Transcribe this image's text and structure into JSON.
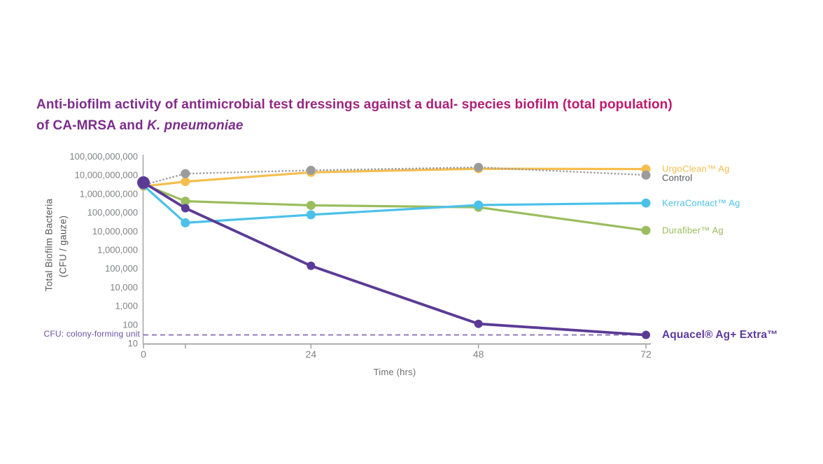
{
  "colors": {
    "title_gradient_start": "#7B2D8B",
    "title_gradient_end": "#C2186B",
    "title_line2": "#7B2D8B",
    "axis": "#A7A9AC",
    "tick_text": "#808285",
    "axis_title_text": "#6D6E71",
    "cfu_note_text": "#6C51A4"
  },
  "chart_data": {
    "type": "line",
    "title_line1": "Anti-biofilm activity of antimicrobial test dressings against a dual- species biofilm (total population)",
    "title_line2_prefix": "of CA-MRSA and ",
    "title_line2_italic": "K. pneumoniae",
    "xlabel": "Time (hrs)",
    "ylabel_line1": "Total Biofilm Bacteria",
    "ylabel_line2": "(CFU / gauze)",
    "y_scale": "log",
    "ylim": [
      10,
      100000000000
    ],
    "xlim": [
      0,
      72
    ],
    "grid": false,
    "legend_position": "right-of-last-point",
    "x": [
      0,
      6,
      24,
      48,
      72
    ],
    "x_ticks": [
      {
        "t": 0,
        "label": "0"
      },
      {
        "t": 6,
        "label": ""
      },
      {
        "t": 24,
        "label": "24"
      },
      {
        "t": 48,
        "label": "48"
      },
      {
        "t": 72,
        "label": "72"
      }
    ],
    "y_ticks": [
      {
        "value": 100000000000,
        "label": "100,000,000,000"
      },
      {
        "value": 10000000000,
        "label": "10,000,000,000"
      },
      {
        "value": 1000000000,
        "label": "1,000,000,000"
      },
      {
        "value": 100000000,
        "label": "100,000,000"
      },
      {
        "value": 10000000,
        "label": "10,000,000"
      },
      {
        "value": 1000000,
        "label": "1,000,000"
      },
      {
        "value": 100000,
        "label": "100,000"
      },
      {
        "value": 10000,
        "label": "10,000"
      },
      {
        "value": 1000,
        "label": "1,000"
      },
      {
        "value": 100,
        "label": "100"
      },
      {
        "value": 10,
        "label": "10"
      }
    ],
    "series": [
      {
        "label": "UrgoClean™ Ag",
        "color": "#F5BE4E",
        "label_color": "#F5BE4E",
        "style": "solid",
        "width": 3.2,
        "marker": 6.5,
        "label_dy": -1,
        "values": [
          2500000000.0,
          4500000000.0,
          14000000000.0,
          22000000000.0,
          21000000000.0
        ]
      },
      {
        "label": "Durafiber™ Ag",
        "color": "#9ABD5D",
        "label_color": "#9ABD5D",
        "style": "solid",
        "width": 3.2,
        "marker": 6.5,
        "label_dy": 0,
        "values": [
          3200000000.0,
          400000000.0,
          240000000.0,
          190000000.0,
          11000000.0
        ]
      },
      {
        "label": "KerraContact™ Ag",
        "color": "#4BC1E9",
        "label_color": "#4BC1E9",
        "style": "solid",
        "width": 3.2,
        "marker": 6.5,
        "label_dy": 0,
        "values": [
          2800000000.0,
          28000000.0,
          75000000.0,
          250000000.0,
          320000000.0
        ]
      },
      {
        "label": "Control",
        "color": "#9B9B9C",
        "label_color": "#54565A",
        "style": "dotted",
        "width": 2.6,
        "marker": 6.5,
        "label_dy": 4,
        "values": [
          3000000000.0,
          12000000000.0,
          18000000000.0,
          26000000000.0,
          10000000000.0
        ]
      },
      {
        "label": "Aquacel® Ag+ Extra™",
        "color": "#5B3A96",
        "label_color": "#5F3C9B",
        "style": "solid",
        "width": 3.8,
        "marker": 6,
        "first_marker": 9,
        "label_dy": 0,
        "emphasis": true,
        "values": [
          4000000000.0,
          170000000.0,
          140000.0,
          110,
          28
        ]
      }
    ],
    "detection_limit": {
      "value": 28,
      "color": "#7D62B3",
      "note": "CFU: colony-forming unit"
    }
  }
}
